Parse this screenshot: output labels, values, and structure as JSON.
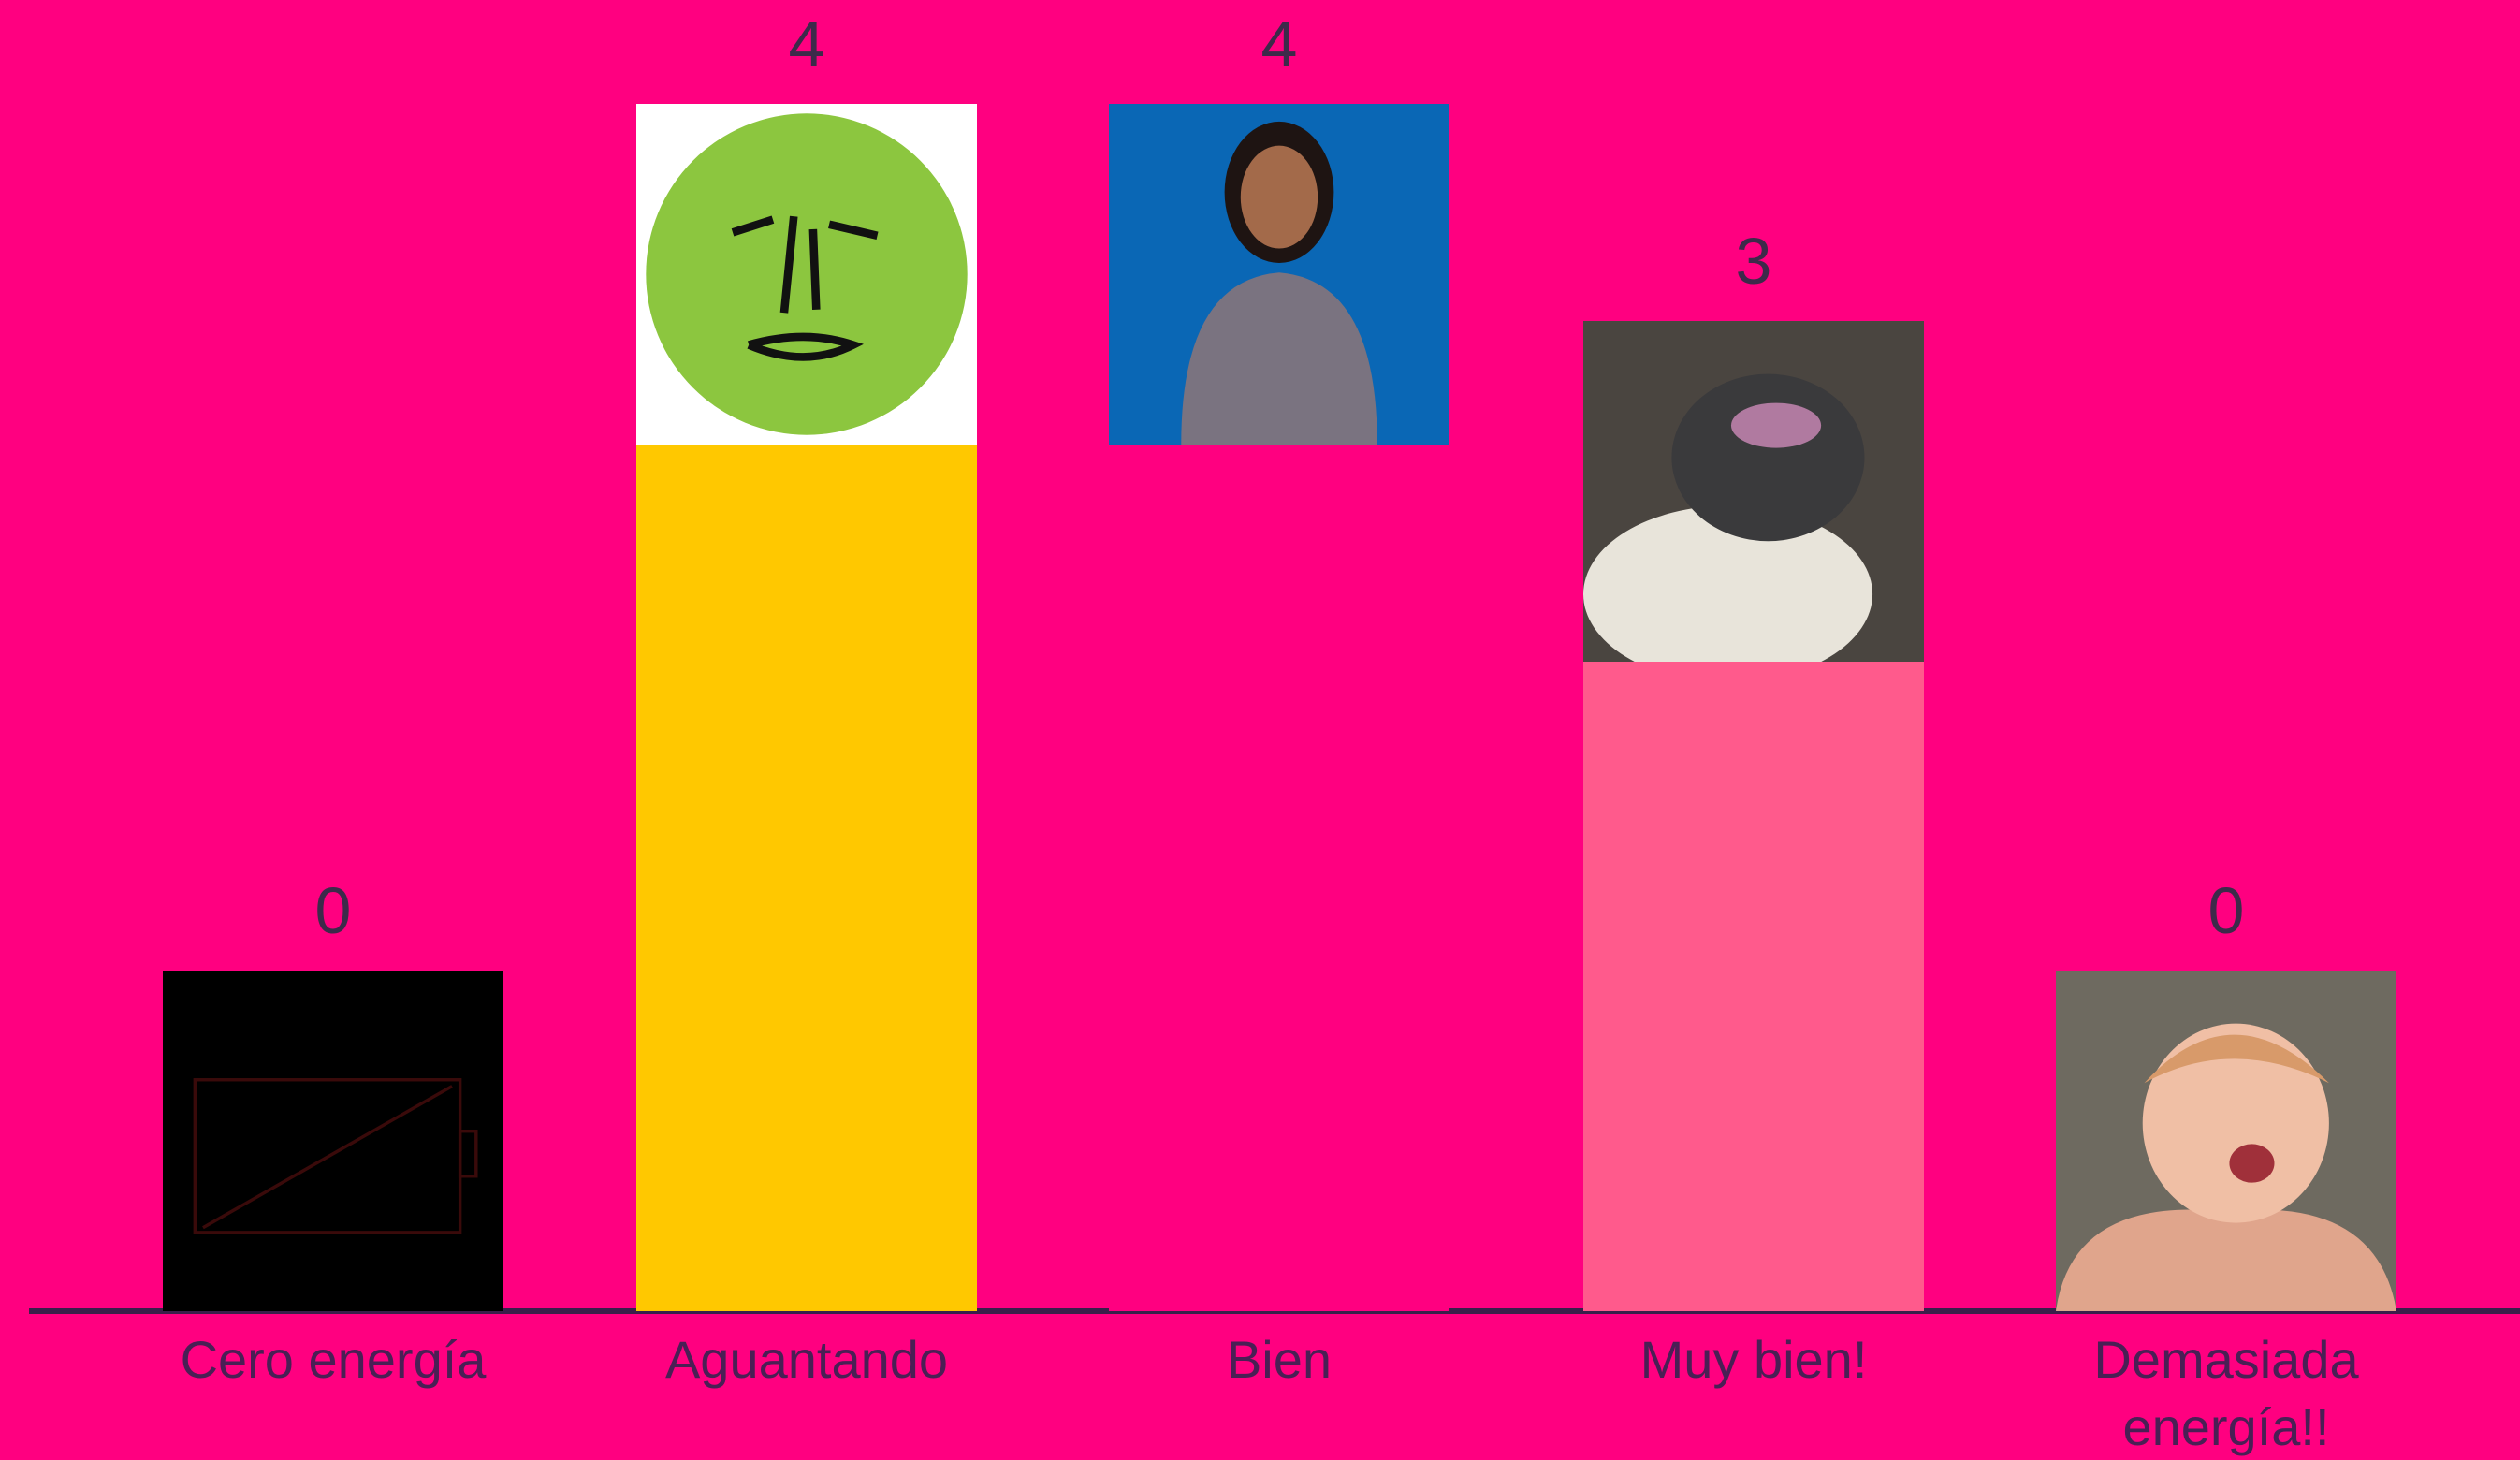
{
  "chart_data": {
    "type": "bar",
    "categories": [
      "Cero energía",
      "Aguantando",
      "Bien",
      "Muy bien!",
      "Demasiada energía!!"
    ],
    "values": [
      0,
      4,
      4,
      3,
      0
    ],
    "colors": [
      null,
      "#ffc800",
      "#ff0080",
      "#ff5a8c",
      null
    ]
  }
}
